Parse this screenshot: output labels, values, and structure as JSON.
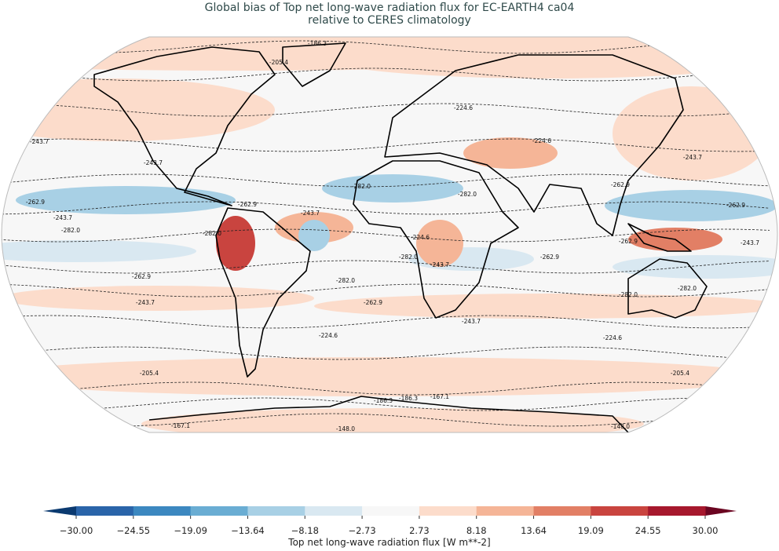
{
  "title": {
    "line1": "Global bias of Top net long-wave radiation flux for EC-EARTH4 ca04",
    "line2": "relative to CERES climatology"
  },
  "map": {
    "projection": "robinson",
    "contour_levels": [
      "-148.0",
      "-167.1",
      "-186.3",
      "-205.4",
      "-224.6",
      "-243.7",
      "-262.9",
      "-282.0"
    ]
  },
  "colorbar": {
    "label": "Top net long-wave radiation flux [W m**-2]",
    "ticks": [
      "−30.00",
      "−24.55",
      "−19.09",
      "−13.64",
      "−8.18",
      "−2.73",
      "2.73",
      "8.18",
      "13.64",
      "19.09",
      "24.55",
      "30.00"
    ],
    "colors": [
      "#2a64a9",
      "#3c88c0",
      "#6aadd3",
      "#a8d0e5",
      "#d9e8f1",
      "#f7f7f7",
      "#fcdccb",
      "#f5b597",
      "#e27f65",
      "#c9443f",
      "#a6182d"
    ],
    "under_color": "#0b3a70",
    "over_color": "#6b0521"
  }
}
